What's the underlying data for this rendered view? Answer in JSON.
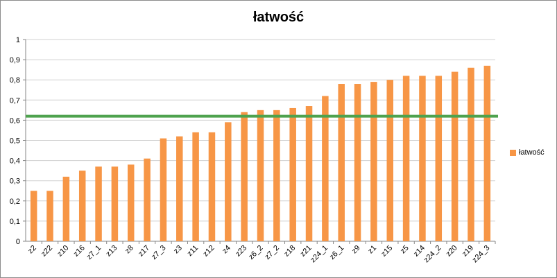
{
  "chart_data": {
    "type": "bar",
    "title": "łatwość",
    "xlabel": "",
    "ylabel": "",
    "ylim": [
      0,
      1
    ],
    "yticks": [
      "0",
      "0,1",
      "0,2",
      "0,3",
      "0,4",
      "0,5",
      "0,6",
      "0,7",
      "0,8",
      "0,9",
      "1"
    ],
    "grid": true,
    "legend_position": "right",
    "categories": [
      "z2",
      "z22",
      "z10",
      "z16",
      "z7_1",
      "z13",
      "z8",
      "z17",
      "z7_3",
      "z3",
      "z11",
      "z12",
      "z4",
      "z23",
      "z6_2",
      "z7_2",
      "z18",
      "z21",
      "z24_1",
      "z6_1",
      "z9",
      "z1",
      "z15",
      "z5",
      "z14",
      "z24_2",
      "z20",
      "z19",
      "z24_3"
    ],
    "series": [
      {
        "name": "łatwość",
        "color": "#f79646",
        "values": [
          0.25,
          0.25,
          0.32,
          0.35,
          0.37,
          0.37,
          0.38,
          0.41,
          0.51,
          0.52,
          0.54,
          0.54,
          0.59,
          0.64,
          0.65,
          0.65,
          0.66,
          0.67,
          0.72,
          0.78,
          0.78,
          0.79,
          0.8,
          0.82,
          0.82,
          0.82,
          0.84,
          0.86,
          0.87
        ]
      }
    ],
    "reference_line": {
      "value": 0.62,
      "color": "#4ea24e"
    }
  }
}
